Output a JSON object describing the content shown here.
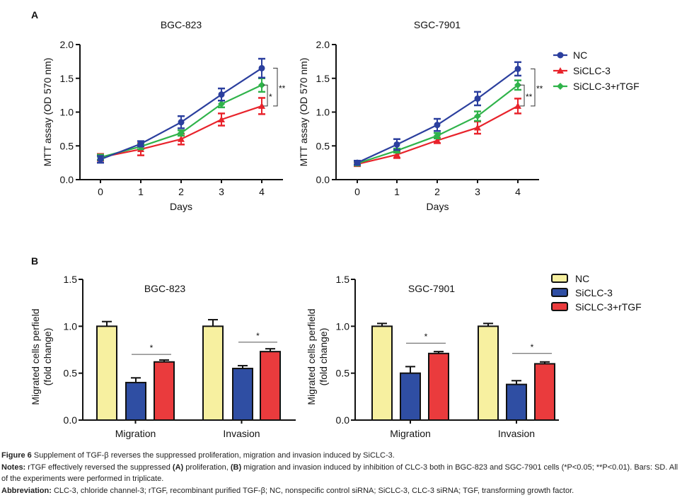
{
  "panels": {
    "A": "A",
    "B": "B"
  },
  "colors": {
    "NC_line": "#2b3f9e",
    "SiCLC3_line": "#e8232b",
    "rTGF_line": "#2fb34a",
    "NC_bar": "#f7f0a0",
    "SiCLC3_bar": "#2f4ea3",
    "rTGF_bar": "#ea3b3d"
  },
  "chart_data": [
    {
      "id": "A-BGC-823",
      "type": "line",
      "title": "BGC-823",
      "xlabel": "Days",
      "ylabel": "MTT assay (OD 570 nm)",
      "x": [
        0,
        1,
        2,
        3,
        4
      ],
      "xticks": [
        "0",
        "1",
        "2",
        "3",
        "4"
      ],
      "ylim": [
        0,
        2.0
      ],
      "yticks": [
        "0.0",
        "0.5",
        "1.0",
        "1.5",
        "2.0"
      ],
      "series": [
        {
          "name": "NC",
          "marker": "circle",
          "values": [
            0.3,
            0.53,
            0.85,
            1.26,
            1.65
          ],
          "errors": [
            0.05,
            0.04,
            0.09,
            0.09,
            0.14
          ]
        },
        {
          "name": "SiCLC-3",
          "marker": "triangle",
          "values": [
            0.33,
            0.45,
            0.6,
            0.89,
            1.09
          ],
          "errors": [
            0.05,
            0.09,
            0.08,
            0.09,
            0.12
          ]
        },
        {
          "name": "SiCLC-3+rTGF",
          "marker": "diamond",
          "values": [
            0.33,
            0.49,
            0.69,
            1.12,
            1.4
          ],
          "errors": [
            0.04,
            0.04,
            0.04,
            0.05,
            0.1
          ]
        }
      ],
      "annotations": [
        {
          "text": "*",
          "between": [
            "SiCLC-3+rTGF",
            "SiCLC-3"
          ],
          "x": 4
        },
        {
          "text": "**",
          "between": [
            "NC",
            "SiCLC-3"
          ],
          "x": 4
        }
      ],
      "grid": false
    },
    {
      "id": "A-SGC-7901",
      "type": "line",
      "title": "SGC-7901",
      "xlabel": "Days",
      "ylabel": "MTT assay (OD 570 nm)",
      "x": [
        0,
        1,
        2,
        3,
        4
      ],
      "xticks": [
        "0",
        "1",
        "2",
        "3",
        "4"
      ],
      "ylim": [
        0,
        2.0
      ],
      "yticks": [
        "0.0",
        "0.5",
        "1.0",
        "1.5",
        "2.0"
      ],
      "series": [
        {
          "name": "NC",
          "marker": "circle",
          "values": [
            0.25,
            0.52,
            0.81,
            1.2,
            1.64
          ],
          "errors": [
            0.03,
            0.08,
            0.09,
            0.1,
            0.1
          ]
        },
        {
          "name": "SiCLC-3",
          "marker": "triangle",
          "values": [
            0.23,
            0.37,
            0.58,
            0.77,
            1.09
          ],
          "errors": [
            0.03,
            0.05,
            0.04,
            0.09,
            0.11
          ]
        },
        {
          "name": "SiCLC-3+rTGF",
          "marker": "diamond",
          "values": [
            0.24,
            0.43,
            0.65,
            0.94,
            1.4
          ],
          "errors": [
            0.03,
            0.03,
            0.04,
            0.07,
            0.07
          ]
        }
      ],
      "annotations": [
        {
          "text": "**",
          "between": [
            "SiCLC-3+rTGF",
            "SiCLC-3"
          ],
          "x": 4
        },
        {
          "text": "**",
          "between": [
            "NC",
            "SiCLC-3"
          ],
          "x": 4
        }
      ],
      "legend": {
        "placement": "right",
        "entries": [
          "NC",
          "SiCLC-3",
          "SiCLC-3+rTGF"
        ]
      },
      "grid": false
    },
    {
      "id": "B-BGC-823",
      "type": "bar",
      "title": "BGC-823",
      "ylabel": "Migrated cells perfield (fold change)",
      "ylabel_lines": [
        "Migrated cells perfield",
        "(fold change)"
      ],
      "categories": [
        "Migration",
        "Invasion"
      ],
      "ylim": [
        0,
        1.5
      ],
      "yticks": [
        "0.0",
        "0.5",
        "1.0",
        "1.5"
      ],
      "series": [
        {
          "name": "NC",
          "values": [
            1.0,
            1.0
          ],
          "errors": [
            0.05,
            0.07
          ]
        },
        {
          "name": "SiCLC-3",
          "values": [
            0.4,
            0.55
          ],
          "errors": [
            0.05,
            0.03
          ]
        },
        {
          "name": "SiCLC-3+rTGF",
          "values": [
            0.62,
            0.73
          ],
          "errors": [
            0.02,
            0.03
          ]
        }
      ],
      "annotations": [
        {
          "text": "*",
          "category": "Migration",
          "between": [
            "SiCLC-3",
            "SiCLC-3+rTGF"
          ],
          "level": 0.7
        },
        {
          "text": "*",
          "category": "Invasion",
          "between": [
            "SiCLC-3",
            "SiCLC-3+rTGF"
          ],
          "level": 0.83
        }
      ],
      "grid": false
    },
    {
      "id": "B-SGC-7901",
      "type": "bar",
      "title": "SGC-7901",
      "ylabel": "Migrated cells perfield (fold change)",
      "ylabel_lines": [
        "Migrated cells perfield",
        "(fold change)"
      ],
      "categories": [
        "Migration",
        "Invasion"
      ],
      "ylim": [
        0,
        1.5
      ],
      "yticks": [
        "0.0",
        "0.5",
        "1.0",
        "1.5"
      ],
      "series": [
        {
          "name": "NC",
          "values": [
            1.0,
            1.0
          ],
          "errors": [
            0.03,
            0.03
          ]
        },
        {
          "name": "SiCLC-3",
          "values": [
            0.5,
            0.38
          ],
          "errors": [
            0.07,
            0.04
          ]
        },
        {
          "name": "SiCLC-3+rTGF",
          "values": [
            0.71,
            0.6
          ],
          "errors": [
            0.02,
            0.02
          ]
        }
      ],
      "annotations": [
        {
          "text": "*",
          "category": "Migration",
          "between": [
            "SiCLC-3",
            "SiCLC-3+rTGF"
          ],
          "level": 0.82
        },
        {
          "text": "*",
          "category": "Invasion",
          "between": [
            "SiCLC-3",
            "SiCLC-3+rTGF"
          ],
          "level": 0.71
        }
      ],
      "legend": {
        "placement": "right",
        "entries": [
          "NC",
          "SiCLC-3",
          "SiCLC-3+rTGF"
        ]
      },
      "grid": false
    }
  ],
  "caption": {
    "figure_label": "Figure 6",
    "figure_text": " Supplement of TGF-β reverses the suppressed proliferation, migration and invasion induced by SiCLC-3.",
    "notes_label": "Notes:",
    "notes_text_1": " rTGF effectively reversed the suppressed ",
    "notes_A": "(A)",
    "notes_text_2": " proliferation, ",
    "notes_B": "(B)",
    "notes_text_3": " migration and invasion induced by inhibition of CLC-3 both in BGC-823 and SGC-7901 cells (*P<0.05; **P<0.01). Bars: SD. All of the experiments were performed in triplicate.",
    "abbrev_label": "Abbreviation:",
    "abbrev_text": " CLC-3, chloride channel-3; rTGF, recombinant purified TGF-β; NC, nonspecific control siRNA; SiCLC-3, CLC-3 siRNA; TGF, transforming growth factor."
  }
}
